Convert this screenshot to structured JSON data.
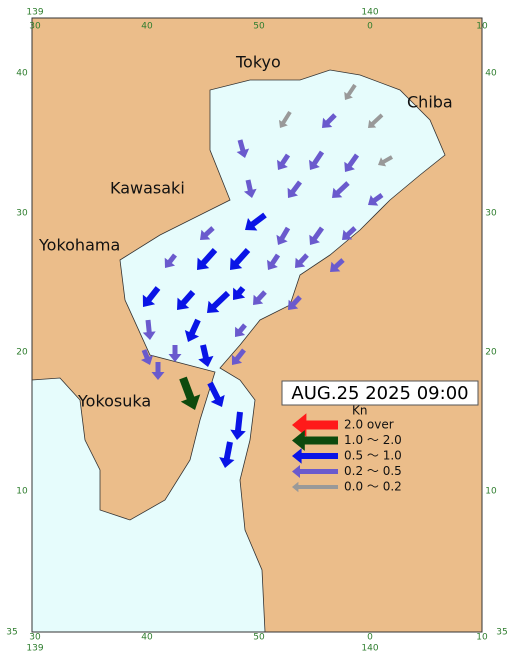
{
  "map": {
    "timestamp": "AUG.25 2025 09:00",
    "places": [
      "Tokyo",
      "Chiba",
      "Kawasaki",
      "Yokohama",
      "Yokosuka"
    ],
    "axes": {
      "degrees_top": [
        "139",
        "140"
      ],
      "degrees_bottom": [
        "139",
        "140"
      ],
      "minutes_top": [
        "30",
        "40",
        "50",
        "0",
        "10"
      ],
      "minutes_bottom": [
        "30",
        "40",
        "50",
        "0",
        "10"
      ],
      "minutes_left": [
        "40",
        "30",
        "20",
        "10"
      ],
      "minutes_right": [
        "40",
        "30",
        "20",
        "10"
      ],
      "corner_left": "35",
      "corner_right": "35"
    },
    "legend": {
      "unit": "Kn",
      "items": [
        {
          "label": "2.0  over",
          "color": "#ff1a1a"
        },
        {
          "label": "1.0 ～ 2.0",
          "color": "#0d4a0d"
        },
        {
          "label": "0.5 ～ 1.0",
          "color": "#0a14e6"
        },
        {
          "label": "0.2 ～ 0.5",
          "color": "#6a5acd"
        },
        {
          "label": "0.0 ～ 0.2",
          "color": "#999999"
        }
      ]
    }
  }
}
